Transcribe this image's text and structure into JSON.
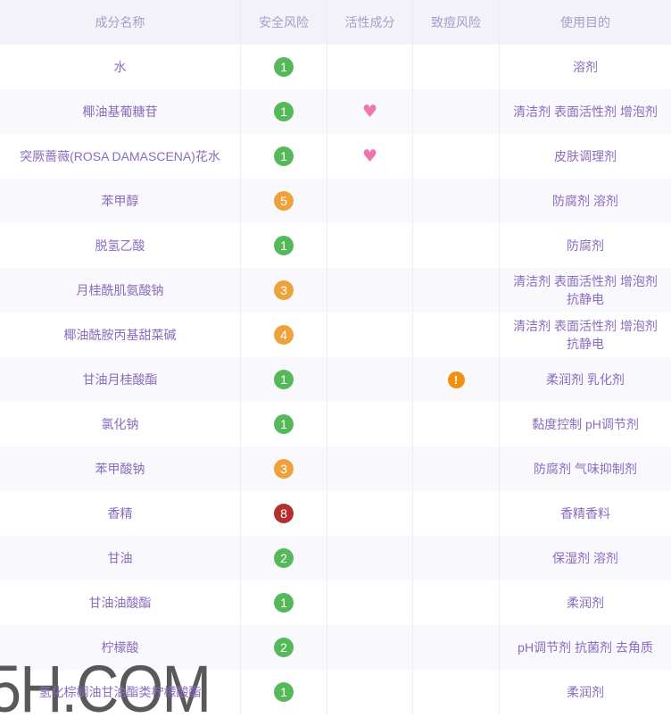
{
  "table": {
    "columns": [
      {
        "label": "成分名称"
      },
      {
        "label": "安全风险"
      },
      {
        "label": "活性成分"
      },
      {
        "label": "致痘风险"
      },
      {
        "label": "使用目的"
      }
    ],
    "rows": [
      {
        "name": "水",
        "safety": "1",
        "safety_color": "green",
        "active": false,
        "acne": false,
        "purpose": "溶剂"
      },
      {
        "name": "椰油基葡糖苷",
        "safety": "1",
        "safety_color": "green",
        "active": true,
        "acne": false,
        "purpose": "清洁剂 表面活性剂 增泡剂"
      },
      {
        "name": "突厥蔷薇(ROSA DAMASCENA)花水",
        "safety": "1",
        "safety_color": "green",
        "active": true,
        "acne": false,
        "purpose": "皮肤调理剂"
      },
      {
        "name": "苯甲醇",
        "safety": "5",
        "safety_color": "orange",
        "active": false,
        "acne": false,
        "purpose": "防腐剂 溶剂"
      },
      {
        "name": "脱氢乙酸",
        "safety": "1",
        "safety_color": "green",
        "active": false,
        "acne": false,
        "purpose": "防腐剂"
      },
      {
        "name": "月桂酰肌氨酸钠",
        "safety": "3",
        "safety_color": "orange",
        "active": false,
        "acne": false,
        "purpose": "清洁剂 表面活性剂 增泡剂 抗静电"
      },
      {
        "name": "椰油酰胺丙基甜菜碱",
        "safety": "4",
        "safety_color": "orange",
        "active": false,
        "acne": false,
        "purpose": "清洁剂 表面活性剂 增泡剂 抗静电"
      },
      {
        "name": "甘油月桂酸酯",
        "safety": "1",
        "safety_color": "green",
        "active": false,
        "acne": true,
        "purpose": "柔润剂 乳化剂"
      },
      {
        "name": "氯化钠",
        "safety": "1",
        "safety_color": "green",
        "active": false,
        "acne": false,
        "purpose": "黏度控制 pH调节剂"
      },
      {
        "name": "苯甲酸钠",
        "safety": "3",
        "safety_color": "orange",
        "active": false,
        "acne": false,
        "purpose": "防腐剂 气味抑制剂"
      },
      {
        "name": "香精",
        "safety": "8",
        "safety_color": "red",
        "active": false,
        "acne": false,
        "purpose": "香精香料"
      },
      {
        "name": "甘油",
        "safety": "2",
        "safety_color": "green",
        "active": false,
        "acne": false,
        "purpose": "保湿剂 溶剂"
      },
      {
        "name": "甘油油酸酯",
        "safety": "1",
        "safety_color": "green",
        "active": false,
        "acne": false,
        "purpose": "柔润剂"
      },
      {
        "name": "柠檬酸",
        "safety": "2",
        "safety_color": "green",
        "active": false,
        "acne": false,
        "purpose": "pH调节剂 抗菌剂 去角质"
      },
      {
        "name": "氢化棕榈油甘油酯类柠檬酸酯",
        "safety": "1",
        "safety_color": "green",
        "active": false,
        "acne": false,
        "purpose": "柔润剂"
      }
    ]
  },
  "icons": {
    "active_heart": "♥",
    "acne_exclaim": "!"
  },
  "watermark": {
    "text": "5H.COM"
  },
  "colors": {
    "header_bg": "#f4f2f9",
    "header_text": "#a89cc8",
    "row_alt_bg": "#f9f8fc",
    "cell_text": "#8a6bbf",
    "divider": "#ededf2",
    "green": "#55b95a",
    "orange": "#eea23c",
    "red": "#b4302e",
    "acne_orange": "#f09210",
    "heart_pink": "#ee76ac",
    "watermark_gray": "#3d3d3d"
  }
}
